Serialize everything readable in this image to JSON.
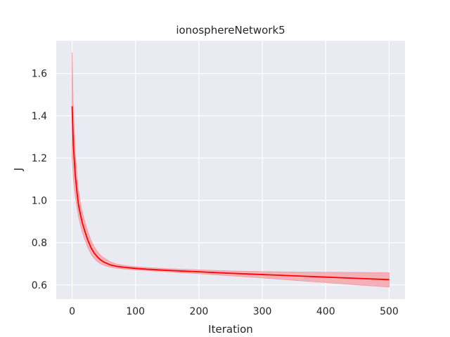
{
  "chart_data": {
    "type": "line",
    "title": "ionosphereNetwork5",
    "xlabel": "Iteration",
    "ylabel": "J",
    "xlim": [
      -25,
      525
    ],
    "ylim": [
      0.533,
      1.755
    ],
    "xticks": [
      0,
      100,
      200,
      300,
      400,
      500
    ],
    "yticks": [
      0.6,
      0.8,
      1.0,
      1.2,
      1.4,
      1.6
    ],
    "grid": true,
    "colors": {
      "background": "#eaeaf2",
      "grid": "#ffffff",
      "line": "#ff0000",
      "band": "#f4a6ad"
    },
    "series": [
      {
        "x": [
          0,
          2,
          5,
          8,
          10,
          13,
          16,
          20,
          25,
          30,
          35,
          40,
          45,
          50,
          60,
          70,
          80,
          90,
          100,
          120,
          150,
          200,
          250,
          300,
          350,
          400,
          450,
          500
        ],
        "values": [
          1.445,
          1.26,
          1.12,
          1.03,
          0.98,
          0.935,
          0.895,
          0.855,
          0.81,
          0.775,
          0.75,
          0.732,
          0.718,
          0.708,
          0.695,
          0.688,
          0.684,
          0.681,
          0.678,
          0.674,
          0.669,
          0.662,
          0.655,
          0.649,
          0.643,
          0.637,
          0.631,
          0.625
        ],
        "lower": [
          1.2,
          1.1,
          1.02,
          0.96,
          0.925,
          0.885,
          0.85,
          0.815,
          0.775,
          0.745,
          0.725,
          0.71,
          0.7,
          0.693,
          0.684,
          0.679,
          0.676,
          0.673,
          0.671,
          0.667,
          0.662,
          0.653,
          0.643,
          0.633,
          0.622,
          0.611,
          0.6,
          0.59
        ],
        "upper": [
          1.7,
          1.42,
          1.23,
          1.11,
          1.05,
          0.99,
          0.945,
          0.9,
          0.85,
          0.81,
          0.78,
          0.757,
          0.74,
          0.728,
          0.71,
          0.699,
          0.693,
          0.689,
          0.686,
          0.682,
          0.677,
          0.671,
          0.666,
          0.663,
          0.661,
          0.66,
          0.659,
          0.658
        ]
      }
    ]
  }
}
